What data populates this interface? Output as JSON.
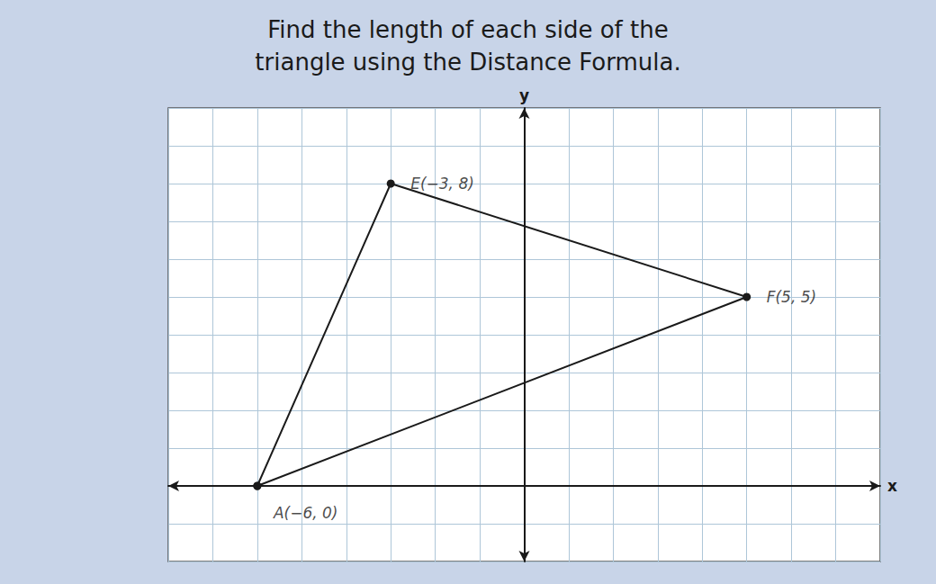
{
  "chart_data": {
    "type": "line",
    "title": "Find the length of each side of the\ntriangle using the Distance Formula.",
    "xlabel": "x",
    "ylabel": "y",
    "x": [
      -6,
      -3,
      5,
      -6
    ],
    "values": [
      0,
      8,
      5,
      0
    ],
    "color": "#1a1a1a",
    "marker": "circle",
    "xlim": [
      -8,
      8
    ],
    "ylim": [
      -2,
      10
    ],
    "xticks": [
      -8,
      -7,
      -6,
      -5,
      -4,
      -3,
      -2,
      -1,
      0,
      1,
      2,
      3,
      4,
      5,
      6,
      7,
      8
    ],
    "yticks": [
      -2,
      -1,
      0,
      1,
      2,
      3,
      4,
      5,
      6,
      7,
      8,
      9,
      10
    ],
    "grid": true,
    "tick_labels": false,
    "annotations": [
      {
        "text": "A(−6, 0)",
        "x": -6,
        "y": 0
      },
      {
        "text": "E(−3, 8)",
        "x": -3,
        "y": 8
      },
      {
        "text": "F(5, 5)",
        "x": 5,
        "y": 5
      }
    ]
  }
}
